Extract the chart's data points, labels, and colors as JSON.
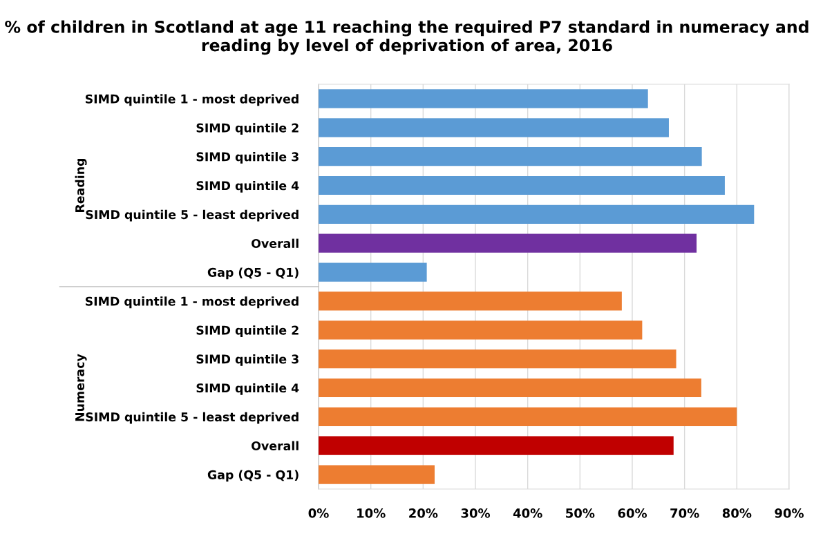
{
  "chart_data": {
    "type": "bar",
    "orientation": "horizontal",
    "title": "% of children in Scotland at age 11 reaching the required P7 standard in numeracy and reading by level of deprivation of area, 2016",
    "categories": [
      "SIMD quintile 1 - most deprived",
      "SIMD quintile 2",
      "SIMD quintile 3",
      "SIMD quintile 4",
      "SIMD quintile 5 - least deprived",
      "Overall",
      "Gap (Q5 - Q1)",
      "SIMD quintile 1 - most deprived",
      "SIMD quintile 2",
      "SIMD quintile 3",
      "SIMD quintile 4",
      "SIMD quintile 5 - least deprived",
      "Overall",
      "Gap (Q5 - Q1)"
    ],
    "values": [
      63,
      67,
      73.3,
      77.7,
      83.3,
      72.3,
      20.7,
      58,
      61.9,
      68.4,
      73.2,
      80,
      67.9,
      22.2
    ],
    "colors": [
      "#5b9bd5",
      "#5b9bd5",
      "#5b9bd5",
      "#5b9bd5",
      "#5b9bd5",
      "#7030a0",
      "#5b9bd5",
      "#ed7d31",
      "#ed7d31",
      "#ed7d31",
      "#ed7d31",
      "#ed7d31",
      "#c00000",
      "#ed7d31"
    ],
    "annotations": [
      "Reading",
      "Numeracy"
    ],
    "xlim": [
      0,
      90
    ],
    "xticks": [
      {
        "value": 0,
        "label": "0%"
      },
      {
        "value": 10,
        "label": "10%"
      },
      {
        "value": 20,
        "label": "20%"
      },
      {
        "value": 30,
        "label": "30%"
      },
      {
        "value": 40,
        "label": "40%"
      },
      {
        "value": 50,
        "label": "50%"
      },
      {
        "value": 60,
        "label": "60%"
      },
      {
        "value": 70,
        "label": "70%"
      },
      {
        "value": 80,
        "label": "80%"
      },
      {
        "value": 90,
        "label": "90%"
      }
    ],
    "grid": "x",
    "legend": false
  }
}
